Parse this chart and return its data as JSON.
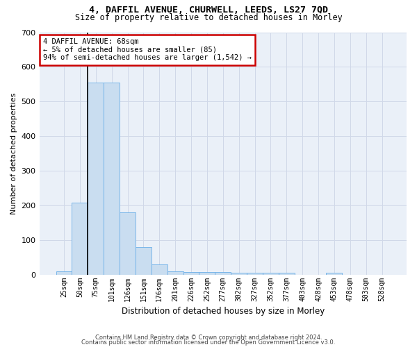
{
  "title1": "4, DAFFIL AVENUE, CHURWELL, LEEDS, LS27 7QD",
  "title2": "Size of property relative to detached houses in Morley",
  "xlabel": "Distribution of detached houses by size in Morley",
  "ylabel": "Number of detached properties",
  "categories": [
    "25sqm",
    "50sqm",
    "75sqm",
    "101sqm",
    "126sqm",
    "151sqm",
    "176sqm",
    "201sqm",
    "226sqm",
    "252sqm",
    "277sqm",
    "302sqm",
    "327sqm",
    "352sqm",
    "377sqm",
    "403sqm",
    "428sqm",
    "453sqm",
    "478sqm",
    "503sqm",
    "528sqm"
  ],
  "values": [
    10,
    207,
    555,
    555,
    180,
    80,
    30,
    10,
    7,
    8,
    8,
    5,
    5,
    5,
    5,
    0,
    0,
    5,
    0,
    0,
    0
  ],
  "bar_color": "#c9ddf0",
  "bar_edge_color": "#6aaee8",
  "annotation_box_text": "4 DAFFIL AVENUE: 68sqm\n← 5% of detached houses are smaller (85)\n94% of semi-detached houses are larger (1,542) →",
  "annotation_box_color": "#ffffff",
  "annotation_box_edge_color": "#cc0000",
  "ylim": [
    0,
    700
  ],
  "yticks": [
    0,
    100,
    200,
    300,
    400,
    500,
    600,
    700
  ],
  "grid_color": "#d0d8e8",
  "background_color": "#eaf0f8",
  "footer1": "Contains HM Land Registry data © Crown copyright and database right 2024.",
  "footer2": "Contains public sector information licensed under the Open Government Licence v3.0.",
  "vline_x": 1.5,
  "vline_color": "#000000"
}
